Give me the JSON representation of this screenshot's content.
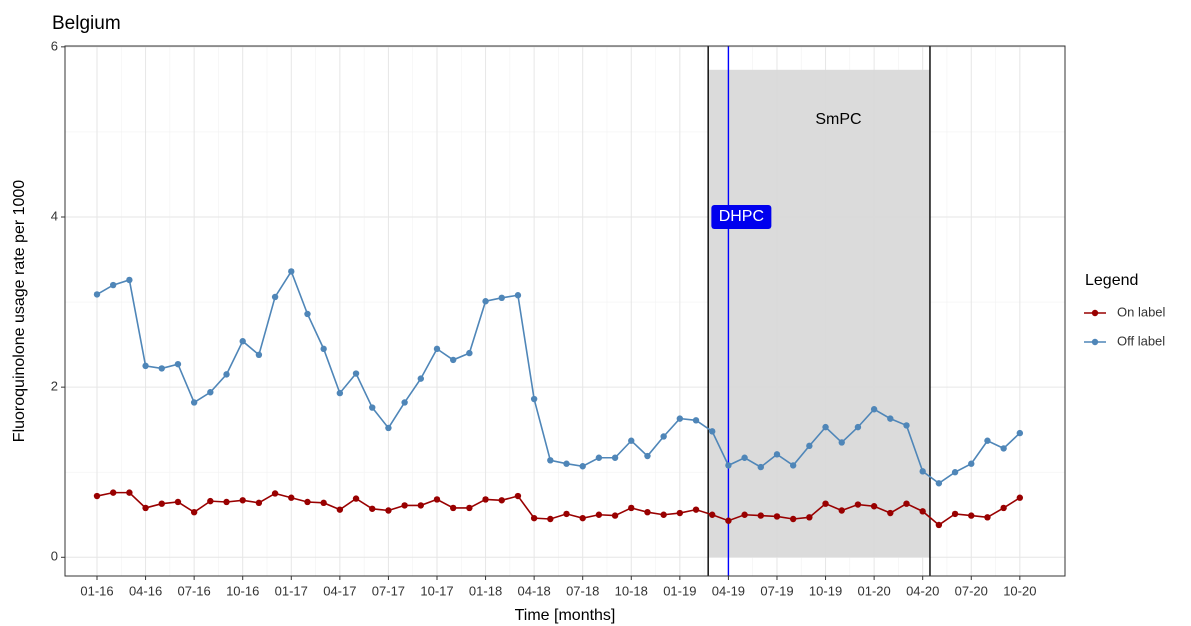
{
  "chart_data": {
    "type": "line",
    "title": "Belgium",
    "x_label": "Time [months]",
    "y_label": "Fluoroquinolone usage rate per 1000",
    "categories": [
      "01-16",
      null,
      null,
      "04-16",
      null,
      null,
      "07-16",
      null,
      null,
      "10-16",
      null,
      null,
      "01-17",
      null,
      null,
      "04-17",
      null,
      null,
      "07-17",
      null,
      null,
      "10-17",
      null,
      null,
      "01-18",
      null,
      null,
      "04-18",
      null,
      null,
      "07-18",
      null,
      null,
      "10-18",
      null,
      null,
      "01-19",
      null,
      null,
      "04-19",
      null,
      null,
      "07-19",
      null,
      null,
      "10-19",
      null,
      null,
      "01-20",
      null,
      null,
      "04-20",
      null,
      null,
      "07-20",
      null,
      null,
      "10-20"
    ],
    "series": [
      {
        "name": "On label",
        "color": "#990000",
        "values": [
          0.72,
          0.76,
          0.76,
          0.58,
          0.63,
          0.65,
          0.53,
          0.66,
          0.65,
          0.67,
          0.64,
          0.75,
          0.7,
          0.65,
          0.64,
          0.56,
          0.69,
          0.57,
          0.55,
          0.61,
          0.61,
          0.68,
          0.58,
          0.58,
          0.68,
          0.67,
          0.72,
          0.46,
          0.45,
          0.51,
          0.46,
          0.5,
          0.49,
          0.58,
          0.53,
          0.5,
          0.52,
          0.56,
          0.5,
          0.43,
          0.5,
          0.49,
          0.48,
          0.45,
          0.47,
          0.63,
          0.55,
          0.62,
          0.6,
          0.52,
          0.63,
          0.54,
          0.38,
          0.51,
          0.49,
          0.47,
          0.58,
          0.7
        ]
      },
      {
        "name": "Off label",
        "color": "#4f86b8",
        "values": [
          3.09,
          3.2,
          3.26,
          2.25,
          2.22,
          2.27,
          1.82,
          1.94,
          2.15,
          2.54,
          2.38,
          3.06,
          3.36,
          2.86,
          2.45,
          1.93,
          2.16,
          1.76,
          1.52,
          1.82,
          2.1,
          2.45,
          2.32,
          2.4,
          3.01,
          3.05,
          3.08,
          1.86,
          1.14,
          1.1,
          1.07,
          1.17,
          1.17,
          1.37,
          1.19,
          1.42,
          1.63,
          1.61,
          1.48,
          1.08,
          1.17,
          1.06,
          1.21,
          1.08,
          1.31,
          1.53,
          1.35,
          1.53,
          1.74,
          1.63,
          1.55,
          1.01,
          0.87,
          1.0,
          1.1,
          1.37,
          1.28,
          1.46
        ]
      }
    ],
    "ylim": [
      -0.22,
      6.01
    ],
    "yticks": [
      0,
      2,
      4,
      6
    ],
    "grid": true,
    "legend_title": "Legend",
    "legend": "right",
    "annotations": [
      "DHPC",
      "SmPC"
    ]
  }
}
